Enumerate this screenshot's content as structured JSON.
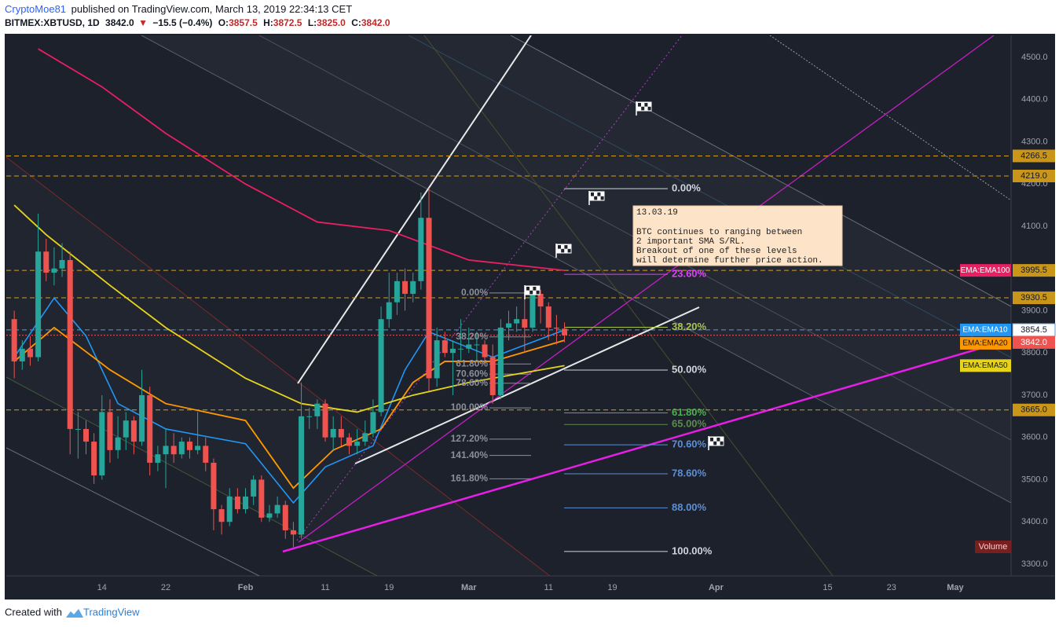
{
  "header": {
    "author": "CryptoMoe81",
    "published": "published on TradingView.com, March 13, 2019 22:34:13 CET",
    "symbol": "BITMEX:XBTUSD, 1D",
    "last": "3842.0",
    "arrow": "▼",
    "change": "−15.5 (−0.4%)",
    "ohlc": [
      {
        "key": "O:",
        "value": "3857.5"
      },
      {
        "key": "H:",
        "value": "3872.5"
      },
      {
        "key": "L:",
        "value": "3825.0"
      },
      {
        "key": "C:",
        "value": "3842.0"
      }
    ]
  },
  "chart_data": {
    "type": "candlestick",
    "up_color": "#26a69a",
    "down_color": "#ef5350",
    "x": [
      "2019-01-03",
      "2019-01-04",
      "2019-01-05",
      "2019-01-06",
      "2019-01-07",
      "2019-01-08",
      "2019-01-09",
      "2019-01-10",
      "2019-01-11",
      "2019-01-12",
      "2019-01-13",
      "2019-01-14",
      "2019-01-15",
      "2019-01-16",
      "2019-01-17",
      "2019-01-18",
      "2019-01-19",
      "2019-01-20",
      "2019-01-21",
      "2019-01-22",
      "2019-01-23",
      "2019-01-24",
      "2019-01-25",
      "2019-01-26",
      "2019-01-27",
      "2019-01-28",
      "2019-01-29",
      "2019-01-30",
      "2019-01-31",
      "2019-02-01",
      "2019-02-02",
      "2019-02-03",
      "2019-02-04",
      "2019-02-05",
      "2019-02-06",
      "2019-02-07",
      "2019-02-08",
      "2019-02-09",
      "2019-02-10",
      "2019-02-11",
      "2019-02-12",
      "2019-02-13",
      "2019-02-14",
      "2019-02-15",
      "2019-02-16",
      "2019-02-17",
      "2019-02-18",
      "2019-02-19",
      "2019-02-20",
      "2019-02-21",
      "2019-02-22",
      "2019-02-23",
      "2019-02-24",
      "2019-02-25",
      "2019-02-26",
      "2019-02-27",
      "2019-02-28",
      "2019-03-01",
      "2019-03-02",
      "2019-03-03",
      "2019-03-04",
      "2019-03-05",
      "2019-03-06",
      "2019-03-07",
      "2019-03-08",
      "2019-03-09",
      "2019-03-10",
      "2019-03-11",
      "2019-03-12",
      "2019-03-13"
    ],
    "open": [
      3880,
      3780,
      3810,
      3790,
      4040,
      3990,
      4000,
      4020,
      3620,
      3620,
      3590,
      3510,
      3660,
      3570,
      3600,
      3640,
      3590,
      3700,
      3540,
      3560,
      3580,
      3560,
      3590,
      3570,
      3580,
      3540,
      3430,
      3400,
      3460,
      3430,
      3460,
      3500,
      3410,
      3420,
      3440,
      3380,
      3370,
      3650,
      3650,
      3680,
      3600,
      3620,
      3600,
      3580,
      3590,
      3610,
      3660,
      3880,
      3920,
      3970,
      3940,
      3970,
      4120,
      3740,
      3830,
      3800,
      3810,
      3810,
      3820,
      3820,
      3790,
      3700,
      3860,
      3870,
      3880,
      3860,
      3940,
      3910,
      3860,
      3857.5
    ],
    "high": [
      3900,
      3830,
      3840,
      4130,
      4070,
      4050,
      4060,
      4040,
      3660,
      3640,
      3610,
      3700,
      3690,
      3650,
      3660,
      3650,
      3760,
      3720,
      3580,
      3620,
      3610,
      3600,
      3600,
      3660,
      3600,
      3550,
      3440,
      3480,
      3480,
      3480,
      3510,
      3510,
      3440,
      3460,
      3450,
      3400,
      3730,
      3670,
      3690,
      3690,
      3650,
      3650,
      3610,
      3620,
      3640,
      3690,
      3910,
      3990,
      3990,
      4000,
      3990,
      4180,
      4190,
      3860,
      3850,
      3830,
      3880,
      3860,
      3850,
      3830,
      3820,
      3880,
      3900,
      3910,
      3940,
      3960,
      3950,
      3920,
      3890,
      3872.5
    ],
    "low": [
      3740,
      3760,
      3770,
      3780,
      3970,
      3960,
      3980,
      3560,
      3550,
      3560,
      3490,
      3500,
      3540,
      3550,
      3570,
      3560,
      3580,
      3510,
      3520,
      3480,
      3540,
      3550,
      3550,
      3560,
      3520,
      3380,
      3370,
      3390,
      3420,
      3420,
      3440,
      3400,
      3400,
      3410,
      3360,
      3340,
      3360,
      3620,
      3620,
      3590,
      3570,
      3580,
      3560,
      3560,
      3580,
      3600,
      3650,
      3860,
      3890,
      3900,
      3920,
      3950,
      3710,
      3720,
      3790,
      3700,
      3780,
      3800,
      3780,
      3770,
      3680,
      3690,
      3830,
      3850,
      3800,
      3850,
      3870,
      3830,
      3820,
      3825
    ],
    "close": [
      3780,
      3810,
      3790,
      4040,
      3990,
      4000,
      4020,
      3620,
      3620,
      3590,
      3510,
      3660,
      3570,
      3600,
      3640,
      3590,
      3700,
      3540,
      3560,
      3580,
      3560,
      3590,
      3570,
      3580,
      3540,
      3430,
      3400,
      3460,
      3430,
      3460,
      3500,
      3410,
      3420,
      3440,
      3380,
      3370,
      3650,
      3650,
      3680,
      3600,
      3620,
      3600,
      3580,
      3590,
      3610,
      3660,
      3880,
      3920,
      3970,
      3940,
      3970,
      4120,
      3740,
      3830,
      3800,
      3810,
      3810,
      3820,
      3820,
      3790,
      3700,
      3860,
      3870,
      3880,
      3860,
      3940,
      3910,
      3860,
      3857.5,
      3842
    ],
    "xlim": [
      "2019-01-02",
      "2019-05-08"
    ],
    "xticks": [
      {
        "value": "2019-01-14",
        "label": "14"
      },
      {
        "value": "2019-01-22",
        "label": "22"
      },
      {
        "value": "2019-02-01",
        "label": "Feb"
      },
      {
        "value": "2019-02-11",
        "label": "11"
      },
      {
        "value": "2019-02-19",
        "label": "19"
      },
      {
        "value": "2019-03-01",
        "label": "Mar"
      },
      {
        "value": "2019-03-11",
        "label": "11"
      },
      {
        "value": "2019-03-19",
        "label": "19"
      },
      {
        "value": "2019-04-01",
        "label": "Apr"
      },
      {
        "value": "2019-04-15",
        "label": "15"
      },
      {
        "value": "2019-04-23",
        "label": "23"
      },
      {
        "value": "2019-05-01",
        "label": "May"
      }
    ],
    "ylim": [
      3272,
      4552
    ],
    "yticks": [
      {
        "value": 3300,
        "label": "3300.0"
      },
      {
        "value": 3400,
        "label": "3400.0"
      },
      {
        "value": 3500,
        "label": "3500.0"
      },
      {
        "value": 3600,
        "label": "3600.0"
      },
      {
        "value": 3700,
        "label": "3700.0"
      },
      {
        "value": 3800,
        "label": "3800.0"
      },
      {
        "value": 3900,
        "label": "3900.0"
      },
      {
        "value": 4000,
        "label": "4000.0"
      },
      {
        "value": 4100,
        "label": "4100.0"
      },
      {
        "value": 4200,
        "label": "4200.0"
      },
      {
        "value": 4300,
        "label": "4300.0"
      },
      {
        "value": 4400,
        "label": "4400.0"
      },
      {
        "value": 4500,
        "label": "4500.0"
      }
    ],
    "indicators": [
      {
        "name": "EMA:EMA100",
        "color": "#e91e63",
        "text_color": "#ffffff",
        "x": [
          "2019-01-06",
          "2019-01-14",
          "2019-01-22",
          "2019-02-01",
          "2019-02-10",
          "2019-02-19",
          "2019-03-01",
          "2019-03-13"
        ],
        "values": [
          4520,
          4430,
          4320,
          4200,
          4110,
          4090,
          4020,
          3995.5
        ]
      },
      {
        "name": "EMA:EMA10",
        "color": "#2196f3",
        "text_color": "#ffffff",
        "x": [
          "2019-01-03",
          "2019-01-08",
          "2019-01-12",
          "2019-01-16",
          "2019-01-22",
          "2019-02-01",
          "2019-02-07",
          "2019-02-11",
          "2019-02-17",
          "2019-02-21",
          "2019-02-24",
          "2019-03-04",
          "2019-03-13"
        ],
        "values": [
          3790,
          3930,
          3840,
          3680,
          3620,
          3585,
          3445,
          3530,
          3580,
          3760,
          3850,
          3790,
          3854.5
        ]
      },
      {
        "name": "EMA:EMA20",
        "color": "#ff9800",
        "text_color": "#131722",
        "x": [
          "2019-01-03",
          "2019-01-08",
          "2019-01-15",
          "2019-01-22",
          "2019-02-01",
          "2019-02-07",
          "2019-02-12",
          "2019-02-18",
          "2019-02-22",
          "2019-02-26",
          "2019-03-04",
          "2019-03-13"
        ],
        "values": [
          3780,
          3860,
          3760,
          3680,
          3640,
          3480,
          3570,
          3620,
          3730,
          3780,
          3780,
          3830
        ]
      },
      {
        "name": "EMA:EMA50",
        "color": "#e6d41c",
        "text_color": "#131722",
        "x": [
          "2019-01-03",
          "2019-01-07",
          "2019-01-15",
          "2019-01-22",
          "2019-02-01",
          "2019-02-08",
          "2019-02-15",
          "2019-02-22",
          "2019-03-01",
          "2019-03-13"
        ],
        "values": [
          4150,
          4080,
          3960,
          3860,
          3740,
          3680,
          3660,
          3700,
          3730,
          3770
        ]
      }
    ],
    "levels": [
      {
        "value": 4266.5,
        "line_color": "#d4a017",
        "tag_color": "#c9961a",
        "text_color": "#131722",
        "style": "dashed"
      },
      {
        "value": 4219,
        "label": "4219.0",
        "line_color": "#d4a017",
        "tag_color": "#c9961a",
        "text_color": "#131722",
        "style": "dashed"
      },
      {
        "value": 3995.5,
        "line_color": "#d4a017",
        "tag_color": "#c9961a",
        "text_color": "#131722",
        "style": "dashed"
      },
      {
        "value": 3930.5,
        "line_color": "#d4a017",
        "tag_color": "#c9961a",
        "text_color": "#131722",
        "style": "dashed"
      },
      {
        "value": 3854.5,
        "line_color": "#5b9bd5",
        "tag_color": "#ffffff",
        "text_color": "#131722",
        "style": "dashed"
      },
      {
        "value": 3842,
        "label": "3842.0",
        "line_color": "#ef5350",
        "tag_color": "#ef5350",
        "text_color": "#ffffff",
        "style": "dotted"
      },
      {
        "value": 3665,
        "label": "3665.0",
        "line_color": "#d4a017",
        "tag_color": "#c9961a",
        "text_color": "#131722",
        "style": "dashed"
      }
    ],
    "fibs": [
      {
        "start": 4189,
        "end": 3330,
        "levels": [
          {
            "value": 0,
            "label": "0.00%",
            "color": "#d1d4dc"
          },
          {
            "value": 23.6,
            "label": "23.60%",
            "color": "#e040fb"
          },
          {
            "value": 38.2,
            "label": "38.20%",
            "color": "#a8c54a"
          },
          {
            "value": 50,
            "label": "50.00%",
            "color": "#d1d4dc"
          },
          {
            "value": 61.8,
            "label": "61.80%",
            "color": "#4caf50"
          },
          {
            "value": 65,
            "label": "65.00%",
            "color": "#5d8a4f"
          },
          {
            "value": 70.6,
            "label": "70.60%",
            "color": "#5b8fd6"
          },
          {
            "value": 78.6,
            "label": "78.60%",
            "color": "#5b8fd6"
          },
          {
            "value": 88,
            "label": "88.00%",
            "color": "#5b8fd6"
          },
          {
            "value": 100,
            "label": "100.00%",
            "color": "#d1d4dc"
          }
        ]
      },
      {
        "start": 3942,
        "end": 3670,
        "levels": [
          {
            "value": 0,
            "label": "0.00%",
            "color": "#8a8f99"
          },
          {
            "value": 38.2,
            "label": "38.20%",
            "color": "#8a8f99"
          },
          {
            "value": 61.8,
            "label": "61.80%",
            "color": "#8a8f99"
          },
          {
            "value": 70.6,
            "label": "70.60%",
            "color": "#8a8f99"
          },
          {
            "value": 78.6,
            "label": "78.60%",
            "color": "#8a8f99"
          },
          {
            "value": 100,
            "label": "100.00%",
            "color": "#8a8f99"
          },
          {
            "value": 127.2,
            "label": "127.20%",
            "color": "#8a8f99"
          },
          {
            "value": 141.4,
            "label": "141.40%",
            "color": "#8a8f99"
          },
          {
            "value": 161.8,
            "label": "161.80%",
            "color": "#8a8f99"
          }
        ]
      }
    ],
    "note": {
      "date": "13.03.19",
      "lines": [
        "BTC continues to ranging between",
        "2 important SMA S/RL.",
        "Breakout of one of these levels",
        "will determine further price action."
      ]
    },
    "volume_label": "Volume"
  },
  "footer": {
    "created": "Created with",
    "brand": "TradingView"
  }
}
